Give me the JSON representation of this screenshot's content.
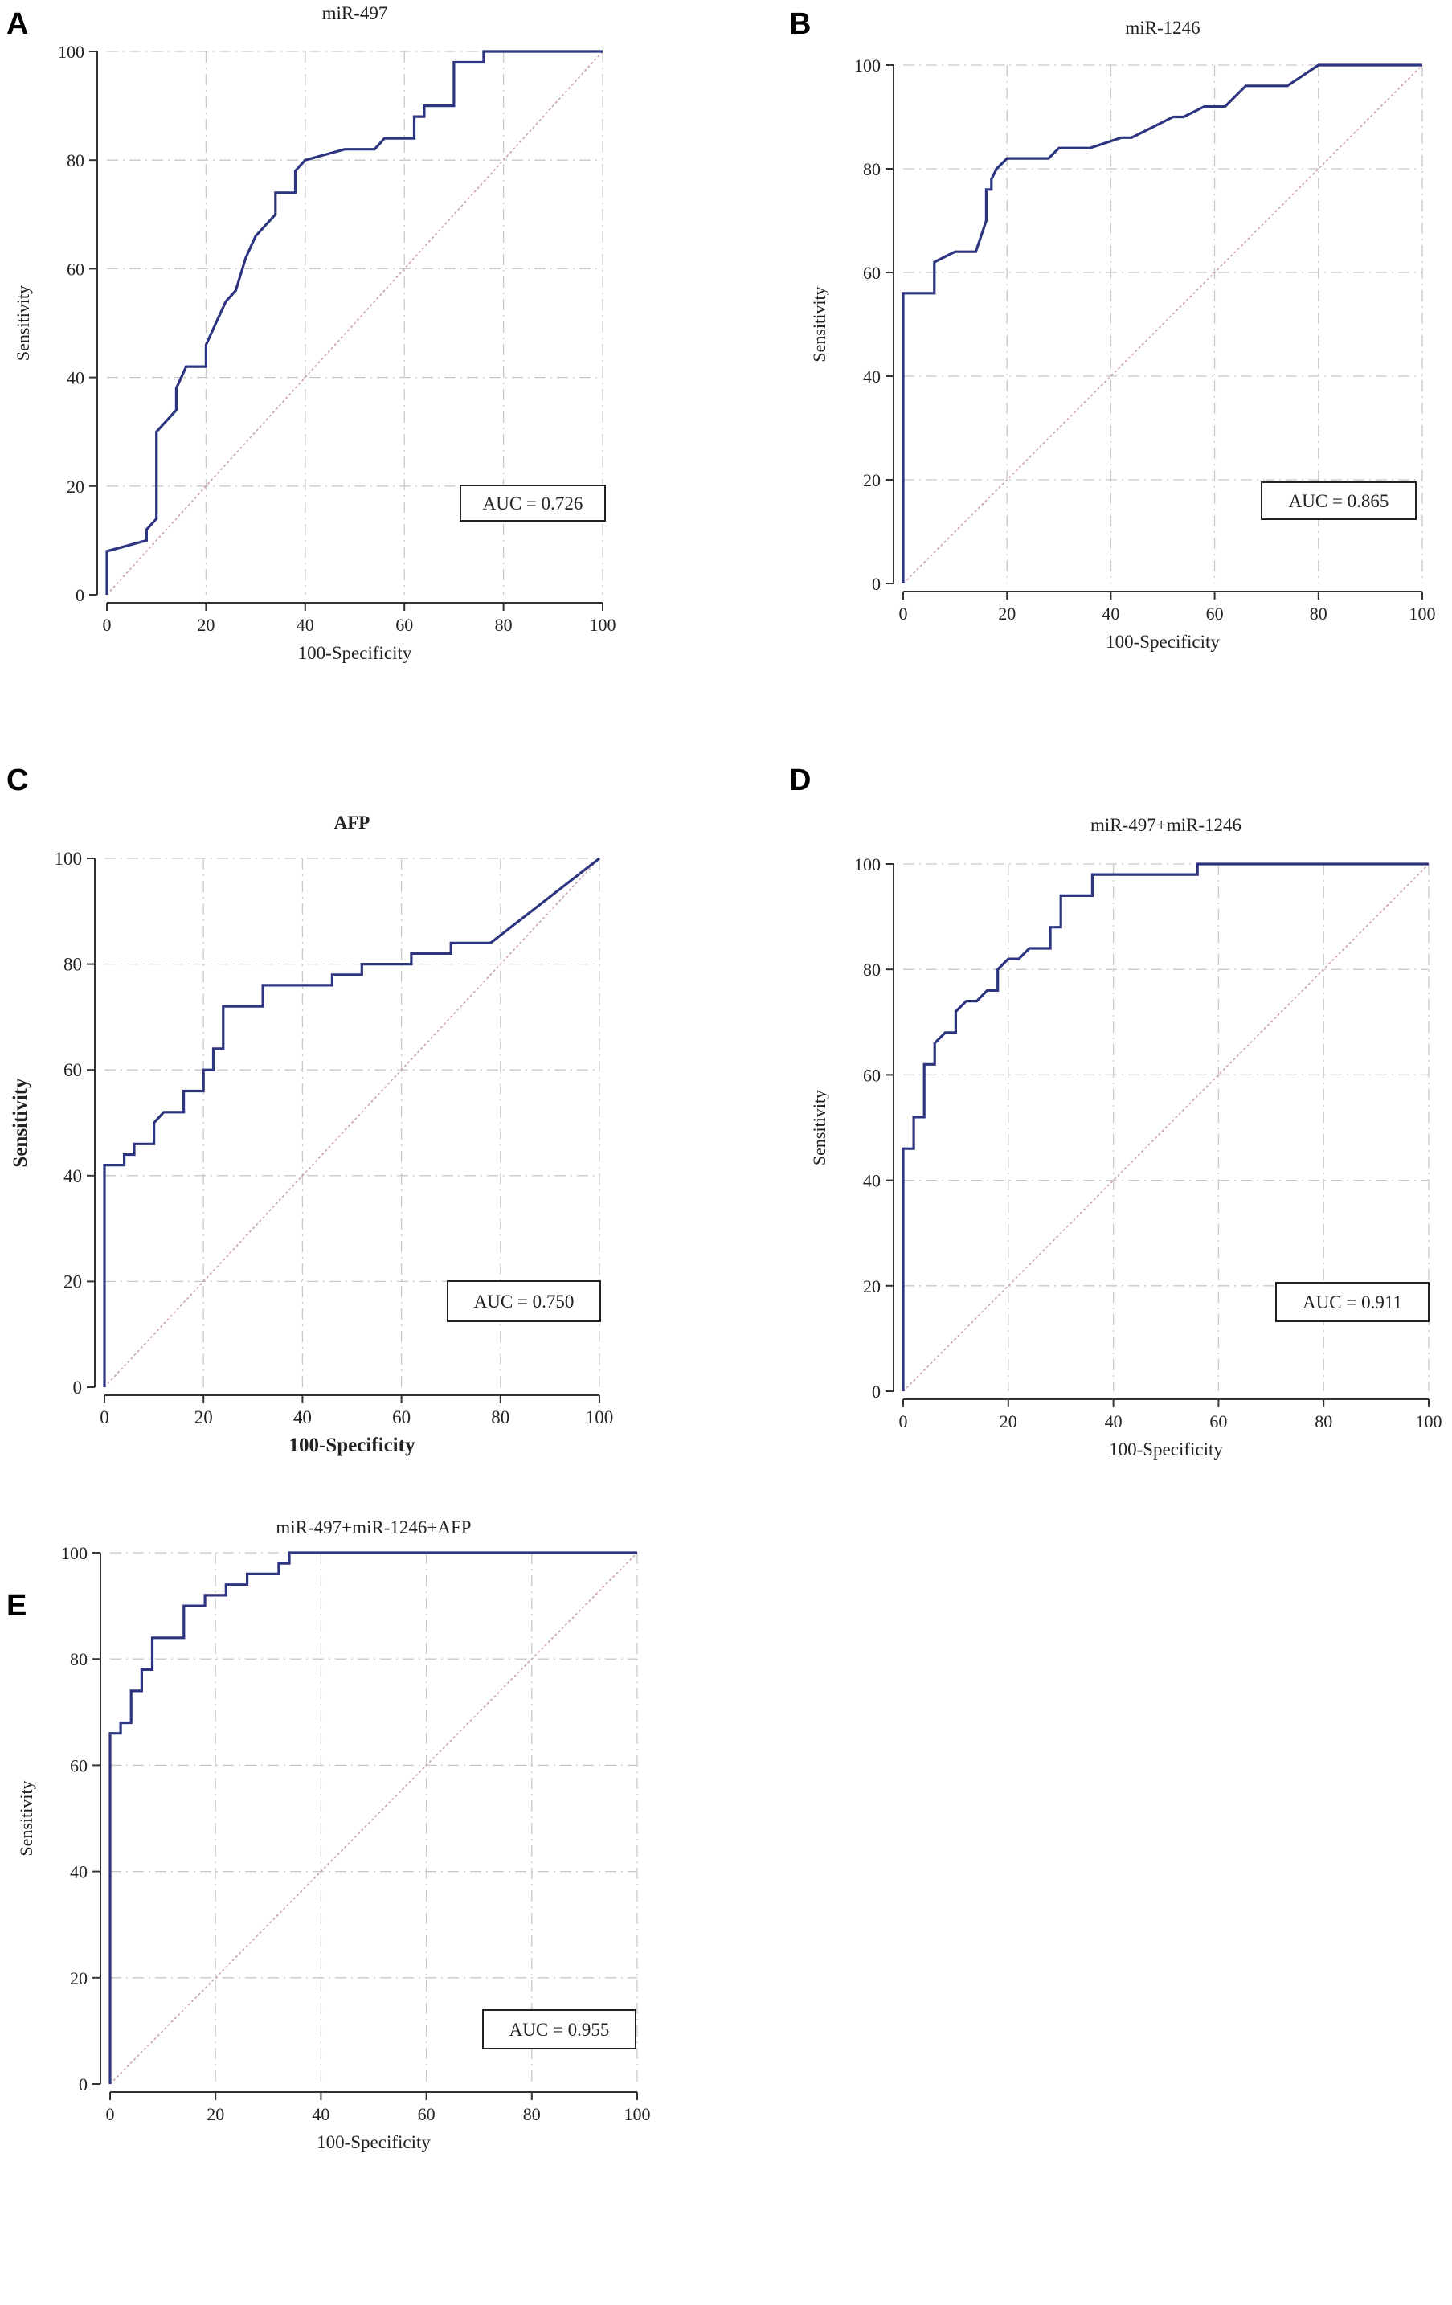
{
  "figure": {
    "panels": [
      "A",
      "B",
      "C",
      "D",
      "E"
    ]
  },
  "colors": {
    "roc_line": "#2e3580",
    "diagonal": "#c9a0a8",
    "grid": "#c8c8c8",
    "axis": "#333333"
  },
  "chart_data": [
    {
      "panel": "A",
      "type": "line",
      "title": "miR-497",
      "xlabel": "100-Specificity",
      "ylabel": "Sensitivity",
      "xlim": [
        0,
        100
      ],
      "ylim": [
        0,
        100
      ],
      "xticks": [
        0,
        20,
        40,
        60,
        80,
        100
      ],
      "yticks": [
        0,
        20,
        40,
        60,
        80,
        100
      ],
      "auc_label": "AUC = 0.726",
      "series": [
        {
          "name": "ROC",
          "x": [
            0,
            0,
            8,
            8,
            10,
            10,
            14,
            14,
            16,
            20,
            20,
            22,
            24,
            26,
            28,
            30,
            32,
            34,
            34,
            38,
            38,
            40,
            48,
            54,
            56,
            62,
            62,
            64,
            64,
            70,
            70,
            76,
            76,
            100
          ],
          "y": [
            0,
            8,
            10,
            12,
            14,
            30,
            34,
            38,
            42,
            42,
            46,
            50,
            54,
            56,
            62,
            66,
            68,
            70,
            74,
            74,
            78,
            80,
            82,
            82,
            84,
            84,
            88,
            88,
            90,
            90,
            98,
            98,
            100,
            100
          ]
        },
        {
          "name": "reference",
          "x": [
            0,
            100
          ],
          "y": [
            0,
            100
          ]
        }
      ]
    },
    {
      "panel": "B",
      "type": "line",
      "title": "miR-1246",
      "xlabel": "100-Specificity",
      "ylabel": "Sensitivity",
      "xlim": [
        0,
        100
      ],
      "ylim": [
        0,
        100
      ],
      "xticks": [
        0,
        20,
        40,
        60,
        80,
        100
      ],
      "yticks": [
        0,
        20,
        40,
        60,
        80,
        100
      ],
      "auc_label": "AUC = 0.865",
      "series": [
        {
          "name": "ROC",
          "x": [
            0,
            0,
            6,
            6,
            8,
            10,
            14,
            16,
            16,
            17,
            17,
            18,
            20,
            28,
            30,
            36,
            42,
            44,
            48,
            50,
            52,
            54,
            58,
            62,
            66,
            74,
            80,
            100
          ],
          "y": [
            0,
            56,
            56,
            62,
            63,
            64,
            64,
            70,
            76,
            76,
            78,
            80,
            82,
            82,
            84,
            84,
            86,
            86,
            88,
            89,
            90,
            90,
            92,
            92,
            96,
            96,
            100,
            100
          ]
        },
        {
          "name": "reference",
          "x": [
            0,
            100
          ],
          "y": [
            0,
            100
          ]
        }
      ]
    },
    {
      "panel": "C",
      "type": "line",
      "title": "AFP",
      "xlabel": "100-Specificity",
      "ylabel": "Sensitivity",
      "xlim": [
        0,
        100
      ],
      "ylim": [
        0,
        100
      ],
      "xticks": [
        0,
        20,
        40,
        60,
        80,
        100
      ],
      "yticks": [
        0,
        20,
        40,
        60,
        80,
        100
      ],
      "auc_label": "AUC = 0.750",
      "series": [
        {
          "name": "ROC",
          "x": [
            0,
            0,
            4,
            4,
            6,
            6,
            10,
            10,
            12,
            16,
            16,
            20,
            20,
            22,
            22,
            24,
            24,
            32,
            32,
            46,
            46,
            52,
            52,
            62,
            62,
            70,
            70,
            78,
            100
          ],
          "y": [
            0,
            42,
            42,
            44,
            44,
            46,
            46,
            50,
            52,
            52,
            56,
            56,
            60,
            60,
            64,
            64,
            72,
            72,
            76,
            76,
            78,
            78,
            80,
            80,
            82,
            82,
            84,
            84,
            100
          ]
        },
        {
          "name": "reference",
          "x": [
            0,
            100
          ],
          "y": [
            0,
            100
          ]
        }
      ]
    },
    {
      "panel": "D",
      "type": "line",
      "title": "miR-497+miR-1246",
      "xlabel": "100-Specificity",
      "ylabel": "Sensitivity",
      "xlim": [
        0,
        100
      ],
      "ylim": [
        0,
        100
      ],
      "xticks": [
        0,
        20,
        40,
        60,
        80,
        100
      ],
      "yticks": [
        0,
        20,
        40,
        60,
        80,
        100
      ],
      "auc_label": "AUC = 0.911",
      "series": [
        {
          "name": "ROC",
          "x": [
            0,
            0,
            2,
            2,
            4,
            4,
            6,
            6,
            8,
            10,
            10,
            12,
            14,
            16,
            18,
            18,
            20,
            22,
            24,
            26,
            28,
            28,
            30,
            30,
            36,
            36,
            56,
            56,
            100
          ],
          "y": [
            0,
            46,
            46,
            52,
            52,
            62,
            62,
            66,
            68,
            68,
            72,
            74,
            74,
            76,
            76,
            80,
            82,
            82,
            84,
            84,
            84,
            88,
            88,
            94,
            94,
            98,
            98,
            100,
            100
          ]
        },
        {
          "name": "reference",
          "x": [
            0,
            100
          ],
          "y": [
            0,
            100
          ]
        }
      ]
    },
    {
      "panel": "E",
      "type": "line",
      "title": "miR-497+miR-1246+AFP",
      "xlabel": "100-Specificity",
      "ylabel": "Sensitivity",
      "xlim": [
        0,
        100
      ],
      "ylim": [
        0,
        100
      ],
      "xticks": [
        0,
        20,
        40,
        60,
        80,
        100
      ],
      "yticks": [
        0,
        20,
        40,
        60,
        80,
        100
      ],
      "auc_label": "AUC = 0.955",
      "series": [
        {
          "name": "ROC",
          "x": [
            0,
            0,
            2,
            2,
            4,
            4,
            6,
            6,
            8,
            8,
            14,
            14,
            18,
            18,
            22,
            22,
            26,
            26,
            32,
            32,
            34,
            34,
            100
          ],
          "y": [
            0,
            66,
            66,
            68,
            68,
            74,
            74,
            78,
            78,
            84,
            84,
            90,
            90,
            92,
            92,
            94,
            94,
            96,
            96,
            98,
            98,
            100,
            100
          ]
        },
        {
          "name": "reference",
          "x": [
            0,
            100
          ],
          "y": [
            0,
            100
          ]
        }
      ]
    }
  ]
}
